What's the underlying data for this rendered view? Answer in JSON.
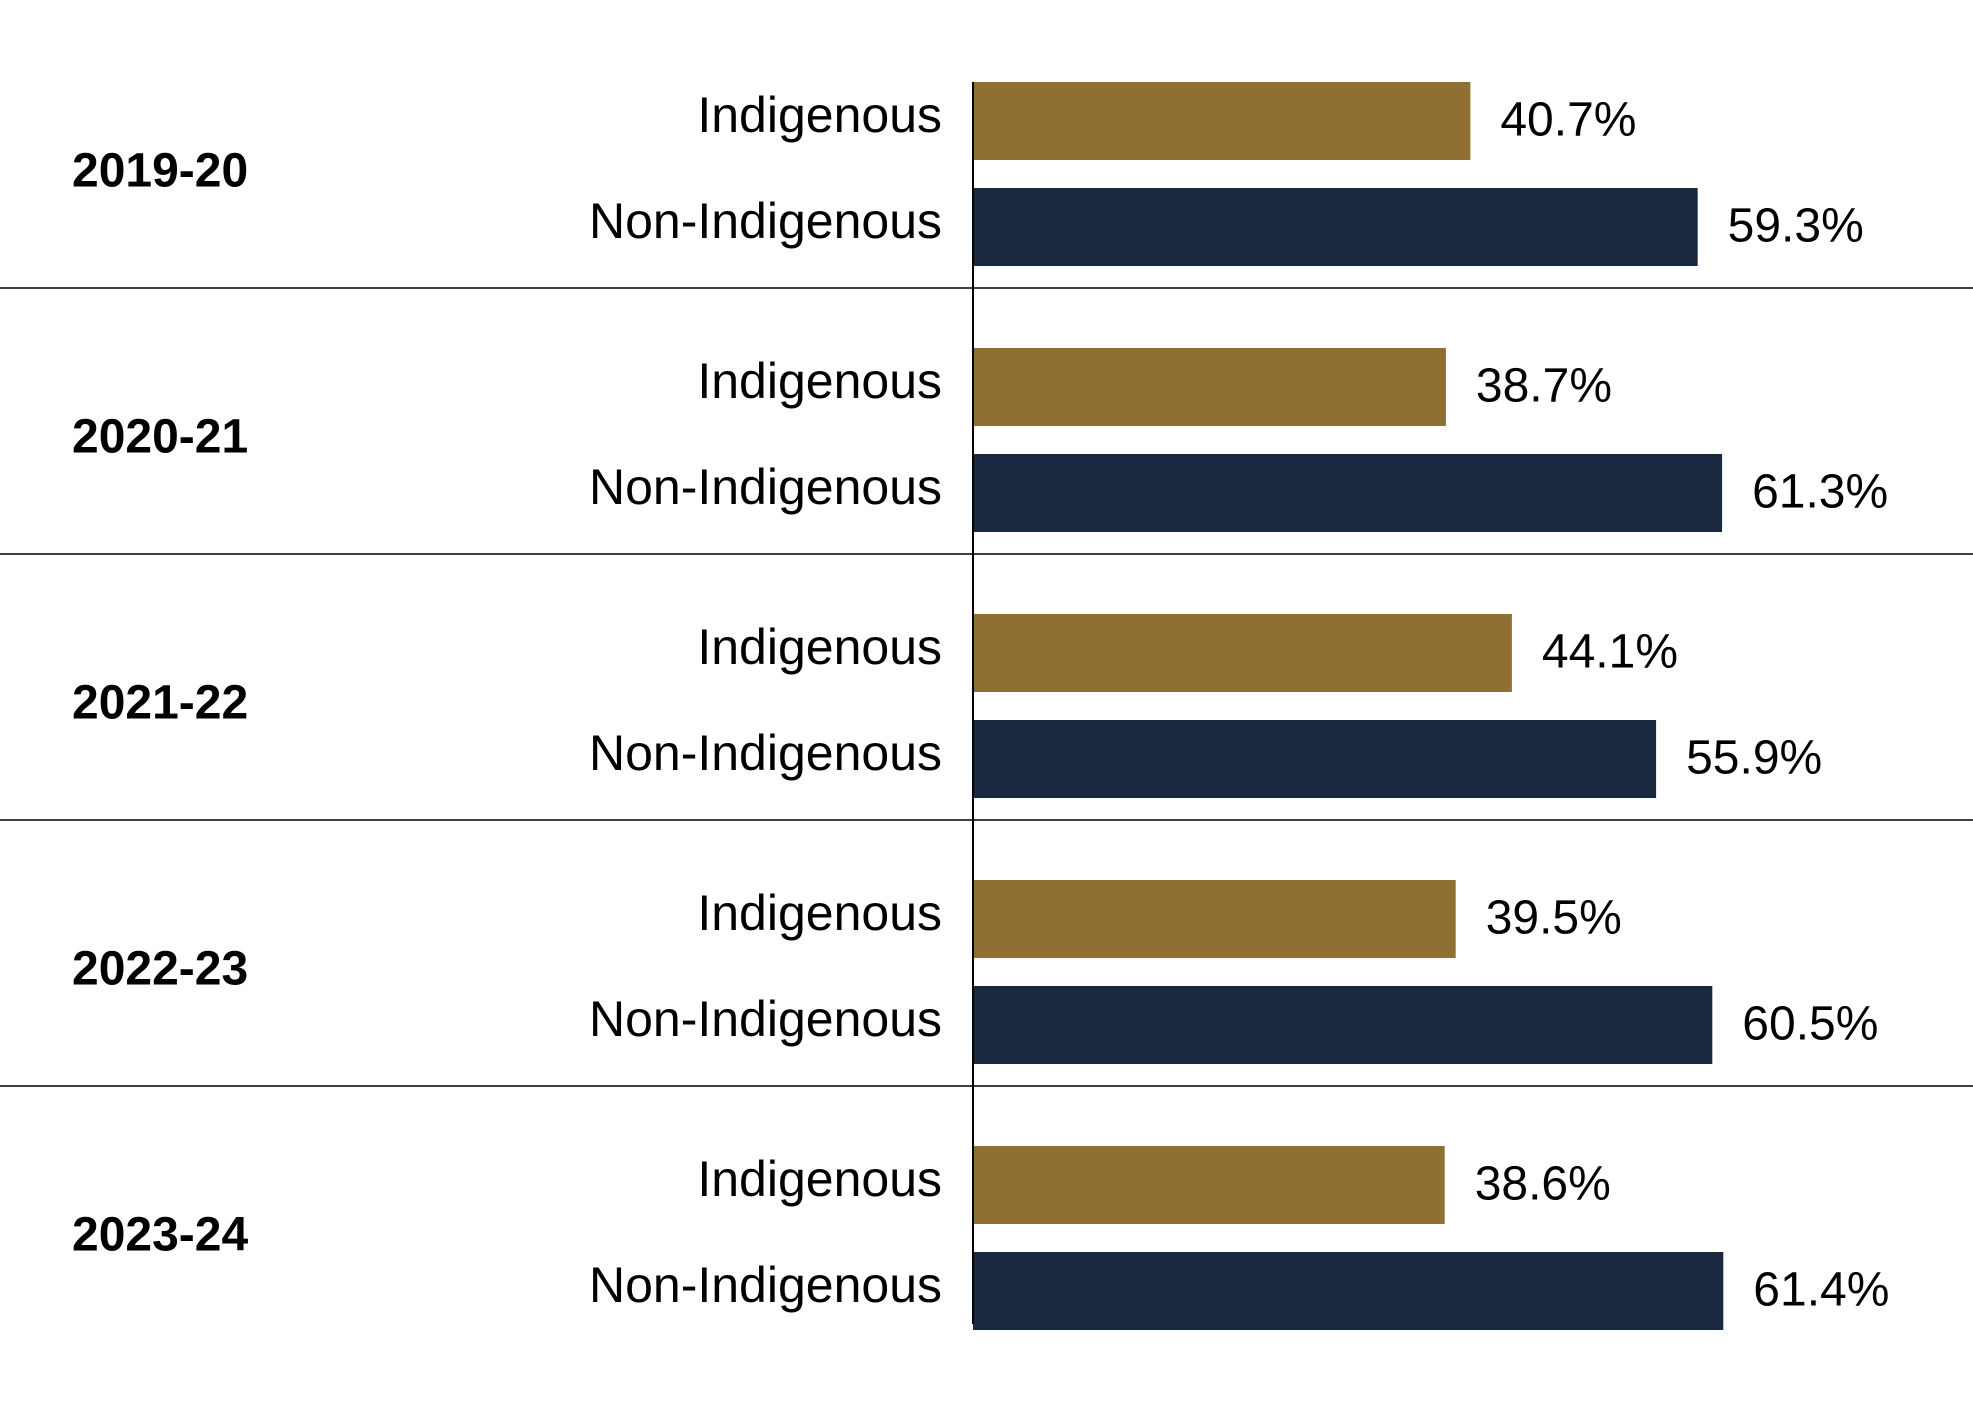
{
  "chart_data": {
    "type": "bar",
    "orientation": "horizontal",
    "groups": [
      "2019-20",
      "2020-21",
      "2021-22",
      "2022-23",
      "2023-24"
    ],
    "series": [
      {
        "name": "Indigenous",
        "color": "#8f7032",
        "values": [
          40.7,
          38.7,
          44.1,
          39.5,
          38.6
        ]
      },
      {
        "name": "Non-Indigenous",
        "color": "#1a2840",
        "values": [
          59.3,
          61.3,
          55.9,
          60.5,
          61.4
        ]
      }
    ],
    "value_labels": [
      [
        "40.7%",
        "59.3%"
      ],
      [
        "38.7%",
        "61.3%"
      ],
      [
        "44.1%",
        "55.9%"
      ],
      [
        "39.5%",
        "60.5%"
      ],
      [
        "38.6%",
        "61.4%"
      ]
    ],
    "value_unit": "%",
    "xlim": [
      0,
      100
    ],
    "grid": false,
    "legend": "none",
    "group_separators": true
  }
}
